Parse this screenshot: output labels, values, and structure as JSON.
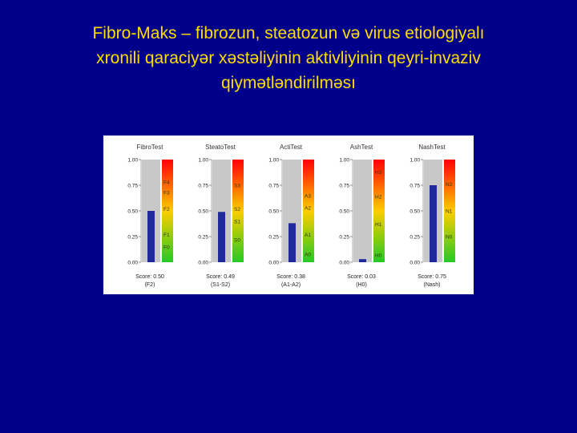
{
  "slide": {
    "title_lines": [
      "Fibro-Maks – fibrozun, steatozun və virus etiologiyalı",
      "xronili qaraciyər xəstəliyinin aktivliyinin qeyri-invaziv",
      "qiymətləndirilməsı"
    ]
  },
  "colors": {
    "background": "#00008b",
    "title": "#ffdd00",
    "bar": "#1f2b9b",
    "track": "#c8c8c8",
    "scale_top": "#ff0000",
    "scale_mid": "#ffcc00",
    "scale_bottom": "#22cc22"
  },
  "chart_data": [
    {
      "type": "bar",
      "title": "FibroTest",
      "value": 0.5,
      "ylim": [
        0,
        1
      ],
      "yticks": [
        "1.00",
        "0.75",
        "0.50",
        "0.25",
        "0.00"
      ],
      "score_label": "Score: 0.50",
      "stage_label": "(F2)",
      "zones": [
        {
          "label": "F4",
          "y": 0.78
        },
        {
          "label": "F3",
          "y": 0.68
        },
        {
          "label": "F2",
          "y": 0.52
        },
        {
          "label": "F1",
          "y": 0.27
        },
        {
          "label": "F0",
          "y": 0.15
        }
      ]
    },
    {
      "type": "bar",
      "title": "SteatoTest",
      "value": 0.49,
      "ylim": [
        0,
        1
      ],
      "yticks": [
        "1.00",
        "0.75",
        "0.50",
        "0.25",
        "0.00"
      ],
      "score_label": "Score: 0.49",
      "stage_label": "(S1-S2)",
      "zones": [
        {
          "label": "S3",
          "y": 0.75
        },
        {
          "label": "S2",
          "y": 0.52
        },
        {
          "label": "S1",
          "y": 0.4
        },
        {
          "label": "S0",
          "y": 0.22
        }
      ]
    },
    {
      "type": "bar",
      "title": "ActiTest",
      "value": 0.38,
      "ylim": [
        0,
        1
      ],
      "yticks": [
        "1.00",
        "0.75",
        "0.50",
        "0.25",
        "0.00"
      ],
      "score_label": "Score: 0.38",
      "stage_label": "(A1-A2)",
      "zones": [
        {
          "label": "A3",
          "y": 0.65
        },
        {
          "label": "A2",
          "y": 0.53
        },
        {
          "label": "A1",
          "y": 0.27
        },
        {
          "label": "A0",
          "y": 0.08
        }
      ]
    },
    {
      "type": "bar",
      "title": "AshTest",
      "value": 0.03,
      "ylim": [
        0,
        1
      ],
      "yticks": [
        "1.00",
        "0.75",
        "0.50",
        "0.25",
        "0.00"
      ],
      "score_label": "Score: 0.03",
      "stage_label": "(H0)",
      "zones": [
        {
          "label": "H3",
          "y": 0.88
        },
        {
          "label": "H2",
          "y": 0.64
        },
        {
          "label": "H1",
          "y": 0.37
        },
        {
          "label": "H0",
          "y": 0.07
        }
      ]
    },
    {
      "type": "bar",
      "title": "NashTest",
      "value": 0.75,
      "ylim": [
        0,
        1
      ],
      "yticks": [
        "1.00",
        "0.75",
        "0.50",
        "0.25",
        "0.00"
      ],
      "score_label": "Score: 0.75",
      "stage_label": "(Nash)",
      "zones": [
        {
          "label": "N2",
          "y": 0.76
        },
        {
          "label": "N1",
          "y": 0.5
        },
        {
          "label": "N0",
          "y": 0.25
        }
      ]
    }
  ]
}
